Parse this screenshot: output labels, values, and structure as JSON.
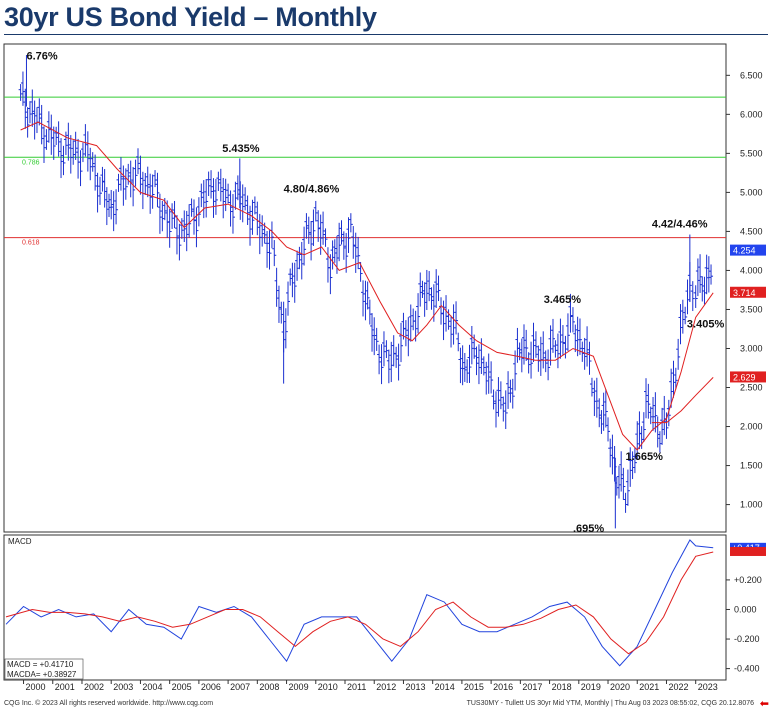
{
  "title": "30yr US Bond Yield – Monthly",
  "footer": {
    "left": "CQG Inc. © 2023 All rights reserved worldwide. http://www.cqg.com",
    "right": "TUS30MY - Tullett US 30yr Mid YTM, Monthly | Thu Aug 03 2023 08:55:02, CQG 20.12.8076"
  },
  "colors": {
    "price_bars": "#1a2fd0",
    "ma_line": "#e02020",
    "fib_green": "#33cc33",
    "fib_red": "#e03030",
    "macd": "#2244dd",
    "macd_avg": "#e02020",
    "badge_blue": "#2244ee",
    "badge_red": "#e02020"
  },
  "chart_data": [
    {
      "type": "ohlc",
      "series": [
        {
          "name": "",
          "kind": "monthly-bars",
          "x": [
            1999.9,
            2000.3,
            2000.7,
            2001.2,
            2001.7,
            2002.2,
            2002.7,
            2003.0,
            2003.5,
            2004.0,
            2004.5,
            2005.0,
            2005.5,
            2006.0,
            2006.5,
            2007.0,
            2007.5,
            2008.0,
            2008.5,
            2008.9,
            2009.2,
            2009.6,
            2010.0,
            2010.5,
            2010.8,
            2011.2,
            2011.7,
            2012.0,
            2012.5,
            2013.0,
            2013.5,
            2013.8,
            2014.2,
            2014.8,
            2015.1,
            2015.5,
            2016.0,
            2016.5,
            2016.9,
            2017.2,
            2017.7,
            2018.2,
            2018.8,
            2019.2,
            2019.7,
            2020.0,
            2020.3,
            2020.6,
            2021.0,
            2021.3,
            2021.7,
            2022.0,
            2022.4,
            2022.8,
            2023.0,
            2023.3,
            2023.6
          ],
          "y": [
            6.2,
            6.0,
            5.8,
            5.6,
            5.5,
            5.5,
            5.0,
            4.8,
            5.2,
            5.2,
            5.0,
            4.6,
            4.5,
            4.8,
            5.1,
            4.9,
            4.9,
            4.6,
            4.3,
            3.2,
            3.9,
            4.3,
            4.7,
            4.1,
            4.3,
            4.5,
            3.7,
            3.1,
            2.8,
            3.1,
            3.5,
            3.8,
            3.6,
            3.2,
            2.7,
            3.0,
            2.5,
            2.2,
            2.9,
            3.0,
            2.9,
            3.0,
            3.3,
            3.0,
            2.2,
            2.0,
            1.3,
            1.2,
            1.7,
            2.3,
            2.0,
            2.0,
            3.0,
            3.8,
            3.8,
            3.8,
            4.2
          ]
        },
        {
          "name": "",
          "kind": "moving-average",
          "color": "#e02020",
          "x": [
            1999.9,
            2000.5,
            2001.5,
            2002.5,
            2003.2,
            2004.0,
            2004.8,
            2005.5,
            2006.2,
            2007.0,
            2007.8,
            2008.5,
            2009.0,
            2009.6,
            2010.2,
            2010.8,
            2011.5,
            2012.2,
            2012.8,
            2013.3,
            2013.8,
            2014.3,
            2014.9,
            2015.5,
            2016.2,
            2016.9,
            2017.5,
            2018.2,
            2018.8,
            2019.5,
            2020.0,
            2020.5,
            2021.0,
            2021.5,
            2022.0,
            2022.5,
            2023.0,
            2023.6
          ],
          "y": [
            5.8,
            5.9,
            5.7,
            5.6,
            5.3,
            5.0,
            4.9,
            4.55,
            4.8,
            4.85,
            4.7,
            4.5,
            4.3,
            4.2,
            4.3,
            4.0,
            4.1,
            3.6,
            3.2,
            3.1,
            3.3,
            3.55,
            3.3,
            3.1,
            2.95,
            2.9,
            2.85,
            2.85,
            3.0,
            2.9,
            2.4,
            1.9,
            1.7,
            1.95,
            2.1,
            2.7,
            3.4,
            3.714
          ]
        },
        {
          "name": "",
          "kind": "long-moving-average",
          "color": "#e02020",
          "x": [
            2021.5,
            2022.0,
            2022.5,
            2023.0,
            2023.6
          ],
          "y": [
            2.05,
            2.05,
            2.2,
            2.4,
            2.629
          ]
        }
      ],
      "xlim": [
        1999.4,
        2023.9
      ],
      "ylim": [
        0.7,
        6.85
      ],
      "x_ticks": [
        "2000",
        "2001",
        "2002",
        "2003",
        "2004",
        "2005",
        "2006",
        "2007",
        "2008",
        "2009",
        "2010",
        "2011",
        "2012",
        "2013",
        "2014",
        "2015",
        "2016",
        "2017",
        "2018",
        "2019",
        "2020",
        "2021",
        "2022",
        "2023"
      ],
      "y_ticks": [
        "6.500",
        "6.000",
        "5.500",
        "5.000",
        "4.500",
        "4.000",
        "3.500",
        "3.000",
        "2.500",
        "2.000",
        "1.500",
        "1.000"
      ],
      "hlines": [
        {
          "value": 6.22,
          "color": "#33cc33",
          "label": ""
        },
        {
          "value": 5.45,
          "color": "#33cc33",
          "label": "0.786"
        },
        {
          "value": 4.42,
          "color": "#e03030",
          "label": "0.618"
        }
      ],
      "annotations": [
        {
          "text": "6.76%",
          "x": 2000.1,
          "y": 6.7
        },
        {
          "text": "5.435%",
          "x": 2006.8,
          "y": 5.52
        },
        {
          "text": "4.80/4.86%",
          "x": 2008.9,
          "y": 5.0
        },
        {
          "text": "4.42/4.46%",
          "x": 2021.5,
          "y": 4.55
        },
        {
          "text": "3.465%",
          "x": 2017.8,
          "y": 3.58
        },
        {
          "text": "3.405%",
          "x": 2022.7,
          "y": 3.27
        },
        {
          "text": "1.665%",
          "x": 2020.6,
          "y": 1.57
        },
        {
          "text": ".695%",
          "x": 2018.8,
          "y": 0.65
        }
      ],
      "last_values": [
        {
          "value": "4.254",
          "y": 4.254,
          "color": "#2244ee"
        },
        {
          "value": "3.714",
          "y": 3.714,
          "color": "#e02020"
        },
        {
          "value": "2.629",
          "y": 2.629,
          "color": "#e02020"
        }
      ]
    },
    {
      "type": "line",
      "panel_label": "MACD",
      "series": [
        {
          "name": "MACD",
          "color": "#2244dd",
          "x": [
            1999.4,
            2000.0,
            2000.6,
            2001.2,
            2001.8,
            2002.4,
            2003.0,
            2003.6,
            2004.2,
            2004.8,
            2005.4,
            2006.0,
            2006.6,
            2007.2,
            2007.8,
            2008.4,
            2009.0,
            2009.6,
            2010.2,
            2010.8,
            2011.4,
            2012.0,
            2012.6,
            2013.2,
            2013.8,
            2014.4,
            2015.0,
            2015.6,
            2016.2,
            2016.8,
            2017.4,
            2018.0,
            2018.6,
            2019.2,
            2019.8,
            2020.4,
            2021.0,
            2021.6,
            2022.2,
            2022.8,
            2023.0,
            2023.6
          ],
          "y": [
            -0.1,
            0.02,
            -0.05,
            0.0,
            -0.05,
            -0.03,
            -0.15,
            0.0,
            -0.1,
            -0.12,
            -0.2,
            0.02,
            -0.02,
            0.02,
            -0.05,
            -0.2,
            -0.35,
            -0.1,
            -0.05,
            -0.05,
            -0.05,
            -0.2,
            -0.35,
            -0.2,
            0.1,
            0.05,
            -0.1,
            -0.15,
            -0.15,
            -0.1,
            -0.05,
            0.02,
            0.05,
            -0.05,
            -0.25,
            -0.38,
            -0.25,
            0.0,
            0.25,
            0.47,
            0.43,
            0.417
          ]
        },
        {
          "name": "MACDA",
          "color": "#e02020",
          "x": [
            1999.4,
            2000.3,
            2000.9,
            2001.5,
            2002.1,
            2002.7,
            2003.3,
            2003.9,
            2004.5,
            2005.1,
            2005.7,
            2006.3,
            2006.9,
            2007.5,
            2008.1,
            2008.7,
            2009.3,
            2009.9,
            2010.5,
            2011.1,
            2011.7,
            2012.3,
            2012.9,
            2013.5,
            2014.1,
            2014.7,
            2015.3,
            2015.9,
            2016.5,
            2017.1,
            2017.7,
            2018.3,
            2018.9,
            2019.5,
            2020.1,
            2020.7,
            2021.3,
            2021.9,
            2022.5,
            2023.0,
            2023.6
          ],
          "y": [
            -0.05,
            0.0,
            -0.02,
            -0.02,
            -0.03,
            -0.05,
            -0.08,
            -0.05,
            -0.08,
            -0.12,
            -0.1,
            -0.05,
            0.0,
            0.0,
            -0.05,
            -0.15,
            -0.25,
            -0.15,
            -0.08,
            -0.05,
            -0.1,
            -0.2,
            -0.25,
            -0.15,
            0.0,
            0.05,
            -0.05,
            -0.12,
            -0.12,
            -0.1,
            -0.06,
            0.0,
            0.03,
            -0.05,
            -0.2,
            -0.3,
            -0.22,
            -0.05,
            0.2,
            0.36,
            0.389
          ]
        }
      ],
      "xlim": [
        1999.4,
        2023.9
      ],
      "ylim": [
        -0.45,
        0.47
      ],
      "y_ticks": [
        "+0.200",
        "0.000",
        "-0.200",
        "-0.400"
      ],
      "readout": [
        {
          "label": "MACD = +0.41710"
        },
        {
          "label": "MACDA= +0.38927"
        }
      ],
      "last_values": [
        {
          "value": "+0.417",
          "y": 0.417,
          "color": "#2244ee"
        },
        {
          "value": "",
          "y": 0.389,
          "color": "#e02020"
        }
      ]
    }
  ]
}
